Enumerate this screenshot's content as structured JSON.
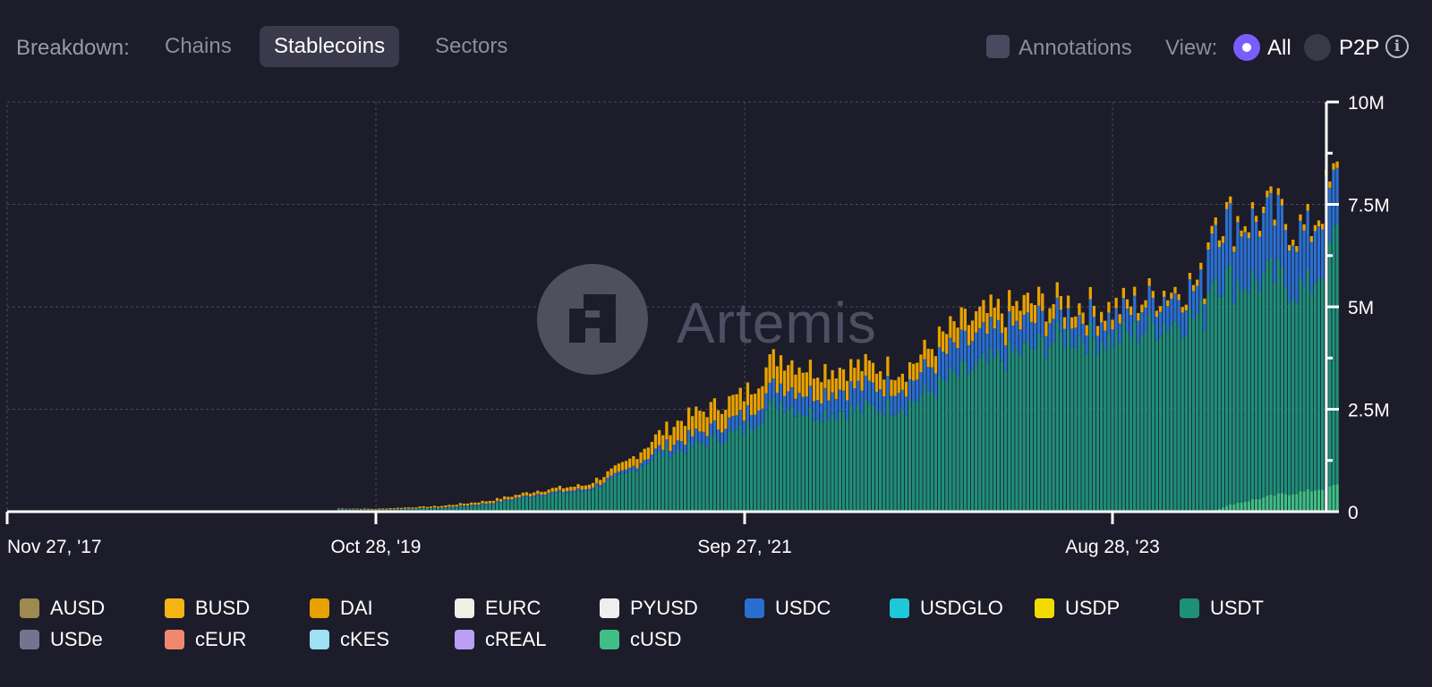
{
  "toolbar": {
    "breakdown_label": "Breakdown:",
    "tabs": [
      "Chains",
      "Stablecoins",
      "Sectors"
    ],
    "active_tab": "Stablecoins",
    "annotations_label": "Annotations",
    "annotations_checked": false,
    "view_label": "View:",
    "view_options": [
      "All",
      "P2P"
    ],
    "view_selected": "All"
  },
  "watermark": "Artemis",
  "colors": {
    "background": "#1d1c2a",
    "accent": "#7b5cff",
    "USDT": "#1f8f7a",
    "USDC": "#2a6fcf",
    "DAI": "#e8a200",
    "BUSD": "#f2b418",
    "cUSD": "#3fbf85"
  },
  "chart_data": {
    "type": "bar",
    "stacked": true,
    "x_ticks": [
      "Nov 27, '17",
      "Oct 28, '19",
      "Sep 27, '21",
      "Aug 28, '23"
    ],
    "y_ticks": [
      "0",
      "2.5M",
      "5M",
      "7.5M",
      "10M"
    ],
    "ylim": [
      0,
      10000000
    ],
    "y_axis_position": "right",
    "grid": true,
    "legend_position": "bottom",
    "legend": [
      "AUSD",
      "BUSD",
      "DAI",
      "EURC",
      "PYUSD",
      "USDC",
      "USDGLO",
      "USDP",
      "USDT",
      "USDe",
      "cEUR",
      "cKES",
      "cREAL",
      "cUSD"
    ],
    "legend_colors": [
      "#9c8a4e",
      "#f5b414",
      "#e8a200",
      "#f0efe6",
      "#eeeeee",
      "#2a6fcf",
      "#1ec8d8",
      "#f2dc00",
      "#1f8f7a",
      "#747390",
      "#f08870",
      "#9ee0f5",
      "#b9a0f5",
      "#3fbf85"
    ],
    "series_order": [
      "cUSD",
      "USDT",
      "USDC",
      "DAI"
    ],
    "series_colors": {
      "cUSD": "#3fbf85",
      "USDT": "#1f8f7a",
      "USDC": "#2a6fcf",
      "DAI": "#e8a200"
    },
    "points": [
      {
        "date": "2019-08-19",
        "cUSD": 0,
        "USDT": 60000,
        "USDC": 10000,
        "DAI": 10000
      },
      {
        "date": "2019-10-28",
        "cUSD": 0,
        "USDT": 40000,
        "USDC": 10000,
        "DAI": 20000
      },
      {
        "date": "2020-03-01",
        "cUSD": 0,
        "USDT": 80000,
        "USDC": 20000,
        "DAI": 40000
      },
      {
        "date": "2020-06-01",
        "cUSD": 0,
        "USDT": 180000,
        "USDC": 30000,
        "DAI": 60000
      },
      {
        "date": "2020-09-01",
        "cUSD": 0,
        "USDT": 400000,
        "USDC": 40000,
        "DAI": 80000
      },
      {
        "date": "2020-12-01",
        "cUSD": 0,
        "USDT": 500000,
        "USDC": 50000,
        "DAI": 100000
      },
      {
        "date": "2021-02-15",
        "cUSD": 0,
        "USDT": 900000,
        "USDC": 80000,
        "DAI": 200000
      },
      {
        "date": "2021-04-19",
        "cUSD": 0,
        "USDT": 1400000,
        "USDC": 150000,
        "DAI": 350000
      },
      {
        "date": "2021-06-01",
        "cUSD": 0,
        "USDT": 1500000,
        "USDC": 250000,
        "DAI": 500000
      },
      {
        "date": "2021-09-27",
        "cUSD": 0,
        "USDT": 2000000,
        "USDC": 350000,
        "DAI": 500000
      },
      {
        "date": "2021-12-01",
        "cUSD": 0,
        "USDT": 2700000,
        "USDC": 450000,
        "DAI": 700000
      },
      {
        "date": "2022-02-01",
        "cUSD": 0,
        "USDT": 2400000,
        "USDC": 500000,
        "DAI": 600000
      },
      {
        "date": "2022-05-01",
        "cUSD": 0,
        "USDT": 2500000,
        "USDC": 550000,
        "DAI": 500000
      },
      {
        "date": "2022-08-01",
        "cUSD": 0,
        "USDT": 2600000,
        "USDC": 500000,
        "DAI": 400000
      },
      {
        "date": "2022-11-01",
        "cUSD": 0,
        "USDT": 3300000,
        "USDC": 700000,
        "DAI": 500000
      },
      {
        "date": "2023-01-01",
        "cUSD": 0,
        "USDT": 3600000,
        "USDC": 700000,
        "DAI": 500000
      },
      {
        "date": "2023-04-01",
        "cUSD": 0,
        "USDT": 4000000,
        "USDC": 650000,
        "DAI": 450000
      },
      {
        "date": "2023-06-01",
        "cUSD": 0,
        "USDT": 4300000,
        "USDC": 500000,
        "DAI": 300000
      },
      {
        "date": "2023-08-28",
        "cUSD": 0,
        "USDT": 4200000,
        "USDC": 500000,
        "DAI": 250000
      },
      {
        "date": "2023-12-01",
        "cUSD": 0,
        "USDT": 4600000,
        "USDC": 650000,
        "DAI": 150000
      },
      {
        "date": "2024-02-20",
        "cUSD": 0,
        "USDT": 4800000,
        "USDC": 700000,
        "DAI": 150000
      },
      {
        "date": "2024-03-01",
        "cUSD": 0,
        "USDT": 5900000,
        "USDC": 1300000,
        "DAI": 200000
      },
      {
        "date": "2024-04-15",
        "cUSD": 200000,
        "USDT": 5400000,
        "USDC": 1400000,
        "DAI": 150000
      },
      {
        "date": "2024-07-01",
        "cUSD": 400000,
        "USDT": 5300000,
        "USDC": 1450000,
        "DAI": 150000
      },
      {
        "date": "2024-09-01",
        "cUSD": 500000,
        "USDT": 4900000,
        "USDC": 1300000,
        "DAI": 150000
      },
      {
        "date": "2024-11-01",
        "cUSD": 650000,
        "USDT": 6200000,
        "USDC": 1300000,
        "DAI": 150000
      }
    ]
  }
}
